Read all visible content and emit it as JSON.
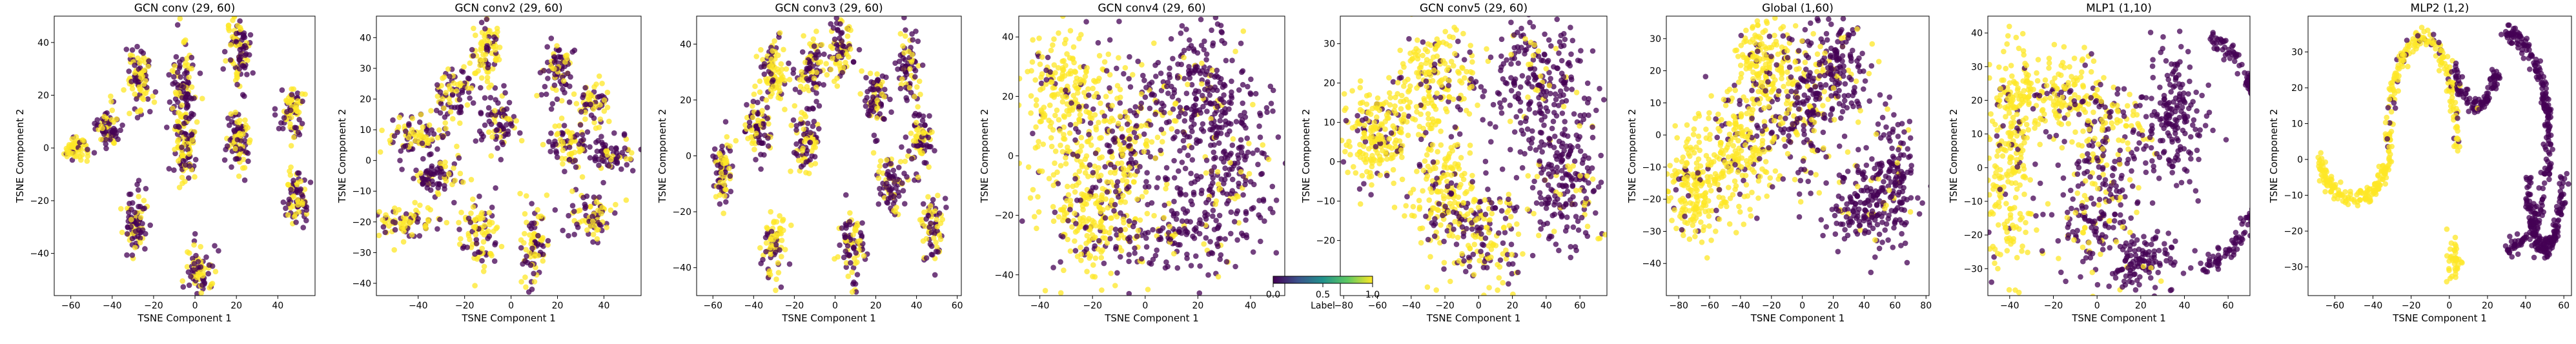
{
  "figure": {
    "colormap": "viridis",
    "colors": {
      "label_0": "#440154",
      "label_1": "#fde725",
      "axis": "#000000",
      "background": "#ffffff"
    },
    "point_alpha": 0.75
  },
  "colorbar": {
    "label": "Label",
    "range": [
      0.0,
      1.0
    ],
    "ticks": [
      "0.0",
      "0.5",
      "1.0"
    ],
    "colormap": "viridis"
  },
  "chart_data": [
    {
      "type": "scatter",
      "title": "GCN conv (29, 60)",
      "xlabel": "TSNE Component 1",
      "ylabel": "TSNE Component 2",
      "xlim": [
        -68,
        58
      ],
      "ylim": [
        -56,
        50
      ],
      "xticks": [
        -60,
        -40,
        -20,
        0,
        20,
        40
      ],
      "yticks": [
        -40,
        -20,
        0,
        20,
        40
      ],
      "grid": false,
      "series_by": "Label (0 = purple, 1 = yellow)",
      "clusters": [
        {
          "cx": -57,
          "cy": 0,
          "sx": 3,
          "sy": 2.5,
          "label_1_share": 0.8,
          "n": 60
        },
        {
          "cx": -42,
          "cy": 8,
          "sx": 3,
          "sy": 4,
          "label_1_share": 0.5,
          "n": 70
        },
        {
          "cx": -27,
          "cy": 27,
          "sx": 3,
          "sy": 6,
          "label_1_share": 0.55,
          "n": 90
        },
        {
          "cx": -28,
          "cy": -28,
          "sx": 2.5,
          "sy": 6,
          "label_1_share": 0.35,
          "n": 85
        },
        {
          "cx": -5,
          "cy": -1,
          "sx": 3,
          "sy": 6,
          "label_1_share": 0.5,
          "n": 90
        },
        {
          "cx": -6,
          "cy": 22,
          "sx": 3,
          "sy": 9,
          "label_1_share": 0.4,
          "n": 110
        },
        {
          "cx": 2,
          "cy": -47,
          "sx": 3,
          "sy": 5,
          "label_1_share": 0.55,
          "n": 80
        },
        {
          "cx": 21,
          "cy": 38,
          "sx": 3,
          "sy": 7,
          "label_1_share": 0.5,
          "n": 100
        },
        {
          "cx": 21,
          "cy": 3,
          "sx": 3,
          "sy": 6,
          "label_1_share": 0.45,
          "n": 90
        },
        {
          "cx": 47,
          "cy": 14,
          "sx": 3,
          "sy": 5,
          "label_1_share": 0.55,
          "n": 80
        },
        {
          "cx": 49,
          "cy": -18,
          "sx": 3,
          "sy": 5,
          "label_1_share": 0.35,
          "n": 80
        }
      ]
    },
    {
      "type": "scatter",
      "title": "GCN conv2 (29, 60)",
      "xlabel": "TSNE Component 1",
      "ylabel": "TSNE Component 2",
      "xlim": [
        -58,
        56
      ],
      "ylim": [
        -44,
        47
      ],
      "xticks": [
        -40,
        -20,
        0,
        20,
        40
      ],
      "yticks": [
        -40,
        -30,
        -20,
        -10,
        0,
        10,
        20,
        30,
        40
      ],
      "grid": false,
      "series_by": "Label (0 = purple, 1 = yellow)",
      "clusters": [
        {
          "cx": -10,
          "cy": 36,
          "sx": 3,
          "sy": 6,
          "label_1_share": 0.7,
          "n": 90
        },
        {
          "cx": -40,
          "cy": 8,
          "sx": 7,
          "sy": 3,
          "label_1_share": 0.55,
          "n": 90
        },
        {
          "cx": -33,
          "cy": -6,
          "sx": 6,
          "sy": 3,
          "label_1_share": 0.3,
          "n": 80
        },
        {
          "cx": -45,
          "cy": -20,
          "sx": 6,
          "sy": 3,
          "label_1_share": 0.75,
          "n": 80
        },
        {
          "cx": -25,
          "cy": 22,
          "sx": 5,
          "sy": 4,
          "label_1_share": 0.4,
          "n": 80
        },
        {
          "cx": -14,
          "cy": -24,
          "sx": 4,
          "sy": 6,
          "label_1_share": 0.6,
          "n": 90
        },
        {
          "cx": -5,
          "cy": 12,
          "sx": 4,
          "sy": 5,
          "label_1_share": 0.4,
          "n": 80
        },
        {
          "cx": 10,
          "cy": -28,
          "sx": 3,
          "sy": 6,
          "label_1_share": 0.6,
          "n": 90
        },
        {
          "cx": 20,
          "cy": 30,
          "sx": 4,
          "sy": 5,
          "label_1_share": 0.35,
          "n": 80
        },
        {
          "cx": 25,
          "cy": 5,
          "sx": 5,
          "sy": 4,
          "label_1_share": 0.5,
          "n": 80
        },
        {
          "cx": 35,
          "cy": -18,
          "sx": 5,
          "sy": 4,
          "label_1_share": 0.45,
          "n": 80
        },
        {
          "cx": 42,
          "cy": 2,
          "sx": 5,
          "sy": 3,
          "label_1_share": 0.3,
          "n": 70
        },
        {
          "cx": 35,
          "cy": 18,
          "sx": 4,
          "sy": 3,
          "label_1_share": 0.6,
          "n": 60
        }
      ]
    },
    {
      "type": "scatter",
      "title": "GCN conv3 (29, 60)",
      "xlabel": "TSNE Component 1",
      "ylabel": "TSNE Component 2",
      "xlim": [
        -68,
        62
      ],
      "ylim": [
        -50,
        50
      ],
      "xticks": [
        -60,
        -40,
        -20,
        0,
        20,
        40,
        60
      ],
      "yticks": [
        -40,
        -20,
        0,
        20,
        40
      ],
      "grid": false,
      "series_by": "Label (0 = purple, 1 = yellow)",
      "clusters": [
        {
          "cx": -55,
          "cy": -6,
          "sx": 3,
          "sy": 6,
          "label_1_share": 0.6,
          "n": 80
        },
        {
          "cx": -38,
          "cy": 10,
          "sx": 3,
          "sy": 6,
          "label_1_share": 0.4,
          "n": 80
        },
        {
          "cx": -30,
          "cy": 30,
          "sx": 3,
          "sy": 6,
          "label_1_share": 0.75,
          "n": 90
        },
        {
          "cx": -12,
          "cy": 30,
          "sx": 3,
          "sy": 6,
          "label_1_share": 0.3,
          "n": 90
        },
        {
          "cx": 3,
          "cy": 38,
          "sx": 3,
          "sy": 5,
          "label_1_share": 0.55,
          "n": 80
        },
        {
          "cx": -14,
          "cy": 4,
          "sx": 3,
          "sy": 6,
          "label_1_share": 0.5,
          "n": 80
        },
        {
          "cx": -30,
          "cy": -32,
          "sx": 3,
          "sy": 6,
          "label_1_share": 0.7,
          "n": 80
        },
        {
          "cx": 8,
          "cy": -32,
          "sx": 3,
          "sy": 6,
          "label_1_share": 0.4,
          "n": 80
        },
        {
          "cx": 20,
          "cy": 20,
          "sx": 3,
          "sy": 6,
          "label_1_share": 0.4,
          "n": 80
        },
        {
          "cx": 28,
          "cy": -10,
          "sx": 3,
          "sy": 6,
          "label_1_share": 0.4,
          "n": 80
        },
        {
          "cx": 42,
          "cy": 5,
          "sx": 3,
          "sy": 7,
          "label_1_share": 0.45,
          "n": 80
        },
        {
          "cx": 36,
          "cy": 32,
          "sx": 3,
          "sy": 6,
          "label_1_share": 0.35,
          "n": 70
        },
        {
          "cx": 48,
          "cy": -25,
          "sx": 3,
          "sy": 6,
          "label_1_share": 0.4,
          "n": 70
        }
      ]
    },
    {
      "type": "scatter",
      "title": "GCN conv4 (29, 60)",
      "xlabel": "TSNE Component 1",
      "ylabel": "TSNE Component 2",
      "xlim": [
        -48,
        53
      ],
      "ylim": [
        -47,
        47
      ],
      "xticks": [
        -40,
        -20,
        0,
        20,
        40
      ],
      "yticks": [
        -40,
        -20,
        0,
        20,
        40
      ],
      "grid": false,
      "series_by": "Label (0 = purple, 1 = yellow)",
      "clusters": [
        {
          "cx": -30,
          "cy": 18,
          "sx": 8,
          "sy": 12,
          "label_1_share": 0.85,
          "n": 260
        },
        {
          "cx": -20,
          "cy": -20,
          "sx": 9,
          "sy": 10,
          "label_1_share": 0.8,
          "n": 230
        },
        {
          "cx": -5,
          "cy": 5,
          "sx": 8,
          "sy": 12,
          "label_1_share": 0.45,
          "n": 200
        },
        {
          "cx": 20,
          "cy": 25,
          "sx": 12,
          "sy": 10,
          "label_1_share": 0.15,
          "n": 220
        },
        {
          "cx": 30,
          "cy": -5,
          "sx": 10,
          "sy": 13,
          "label_1_share": 0.1,
          "n": 240
        },
        {
          "cx": 10,
          "cy": -28,
          "sx": 12,
          "sy": 6,
          "label_1_share": 0.25,
          "n": 130
        }
      ]
    },
    {
      "type": "scatter",
      "title": "GCN conv5 (29, 60)",
      "xlabel": "TSNE Component 1",
      "ylabel": "TSNE Component 2",
      "xlim": [
        -82,
        76
      ],
      "ylim": [
        -34,
        37
      ],
      "xticks": [
        -80,
        -60,
        -40,
        -20,
        0,
        20,
        40,
        60
      ],
      "yticks": [
        -30,
        -20,
        -10,
        0,
        10,
        20,
        30
      ],
      "grid": false,
      "series_by": "Label (0 = purple, 1 = yellow)",
      "clusters": [
        {
          "cx": -60,
          "cy": 6,
          "sx": 10,
          "sy": 6,
          "label_1_share": 0.85,
          "n": 220
        },
        {
          "cx": -25,
          "cy": 20,
          "sx": 12,
          "sy": 7,
          "label_1_share": 0.8,
          "n": 200
        },
        {
          "cx": -20,
          "cy": -8,
          "sx": 10,
          "sy": 8,
          "label_1_share": 0.8,
          "n": 180
        },
        {
          "cx": 5,
          "cy": -18,
          "sx": 12,
          "sy": 7,
          "label_1_share": 0.55,
          "n": 170
        },
        {
          "cx": 35,
          "cy": 20,
          "sx": 14,
          "sy": 8,
          "label_1_share": 0.1,
          "n": 230
        },
        {
          "cx": 50,
          "cy": -5,
          "sx": 12,
          "sy": 8,
          "label_1_share": 0.1,
          "n": 200
        }
      ]
    },
    {
      "type": "scatter",
      "title": "Global (1,60)",
      "xlabel": "TSNE Component 1",
      "ylabel": "TSNE Component 2",
      "xlim": [
        -88,
        82
      ],
      "ylim": [
        -50,
        37
      ],
      "xticks": [
        -80,
        -60,
        -40,
        -20,
        0,
        20,
        40,
        60,
        80
      ],
      "yticks": [
        -40,
        -30,
        -20,
        -10,
        0,
        10,
        20,
        30
      ],
      "grid": false,
      "series_by": "Label (0 = purple, 1 = yellow)",
      "clusters": [
        {
          "cx": -70,
          "cy": -15,
          "sx": 9,
          "sy": 8,
          "label_1_share": 0.9,
          "n": 200
        },
        {
          "cx": -40,
          "cy": -5,
          "sx": 12,
          "sy": 10,
          "label_1_share": 0.8,
          "n": 220
        },
        {
          "cx": -25,
          "cy": 22,
          "sx": 8,
          "sy": 7,
          "label_1_share": 0.85,
          "n": 160
        },
        {
          "cx": 0,
          "cy": 8,
          "sx": 12,
          "sy": 10,
          "label_1_share": 0.4,
          "n": 200
        },
        {
          "cx": 20,
          "cy": 20,
          "sx": 12,
          "sy": 8,
          "label_1_share": 0.15,
          "n": 170
        },
        {
          "cx": 40,
          "cy": -22,
          "sx": 14,
          "sy": 8,
          "label_1_share": 0.1,
          "n": 190
        },
        {
          "cx": 60,
          "cy": -10,
          "sx": 8,
          "sy": 8,
          "label_1_share": 0.1,
          "n": 110
        }
      ]
    },
    {
      "type": "scatter",
      "title": "MLP1 (1,10)",
      "xlabel": "TSNE Component 1",
      "ylabel": "TSNE Component 2",
      "xlim": [
        -50,
        70
      ],
      "ylim": [
        -38,
        45
      ],
      "xticks": [
        -40,
        -20,
        0,
        20,
        40,
        60
      ],
      "yticks": [
        -30,
        -20,
        -10,
        0,
        10,
        20,
        30,
        40
      ],
      "grid": false,
      "series_by": "Label (0 = purple, 1 = yellow)",
      "clusters": [
        {
          "cx": -40,
          "cy": 5,
          "sx": 5,
          "sy": 18,
          "label_1_share": 0.9,
          "n": 240
        },
        {
          "cx": -20,
          "cy": 22,
          "sx": 12,
          "sy": 6,
          "label_1_share": 0.85,
          "n": 180
        },
        {
          "cx": 2,
          "cy": 10,
          "sx": 10,
          "sy": 8,
          "label_1_share": 0.5,
          "n": 160
        },
        {
          "cx": 0,
          "cy": -15,
          "sx": 10,
          "sy": 8,
          "label_1_share": 0.25,
          "n": 150
        },
        {
          "cx": 20,
          "cy": -28,
          "sx": 10,
          "sy": 4,
          "label_1_share": 0.05,
          "n": 120
        },
        {
          "cx": 35,
          "cy": 15,
          "sx": 8,
          "sy": 10,
          "label_1_share": 0.0,
          "n": 180
        }
      ],
      "arcs": [
        {
          "cx": 42,
          "cy": 5,
          "r": 34,
          "ry": 35,
          "a0": -80,
          "a1": 75,
          "label_1_share": 0.0,
          "n": 220
        }
      ]
    },
    {
      "type": "scatter",
      "title": "MLP2 (1,2)",
      "xlabel": "TSNE Component 1",
      "ylabel": "TSNE Component 2",
      "xlim": [
        -74,
        64
      ],
      "ylim": [
        -38,
        40
      ],
      "xticks": [
        -60,
        -40,
        -20,
        0,
        20,
        40,
        60
      ],
      "yticks": [
        -30,
        -20,
        -10,
        0,
        10,
        20,
        30
      ],
      "grid": false,
      "series_by": "Label (0 = purple, 1 = yellow)",
      "clusters": [
        {
          "cx": 2,
          "cy": -28,
          "sx": 2,
          "sy": 3,
          "label_1_share": 1.0,
          "n": 40
        }
      ],
      "arcs": [
        {
          "cx": -50,
          "cy": 2,
          "r": 18,
          "ry": 13,
          "a0": 180,
          "a1": 360,
          "label_1_share": 1.0,
          "n": 160
        },
        {
          "cx": -14,
          "cy": 2,
          "r": 18,
          "ry": 32,
          "a0": 0,
          "a1": 180,
          "label_1_share": 0.85,
          "n": 200
        },
        {
          "cx": 14,
          "cy": 25,
          "r": 10,
          "ry": 10,
          "a0": 180,
          "a1": 360,
          "label_1_share": 0.05,
          "n": 100
        },
        {
          "cx": 30,
          "cy": 5,
          "r": 22,
          "ry": 30,
          "a0": -90,
          "a1": 90,
          "label_1_share": 0.0,
          "n": 230
        },
        {
          "cx": 50,
          "cy": 5,
          "r": 10,
          "ry": 30,
          "a0": 200,
          "a1": 340,
          "label_1_share": 0.0,
          "n": 170
        }
      ]
    }
  ]
}
